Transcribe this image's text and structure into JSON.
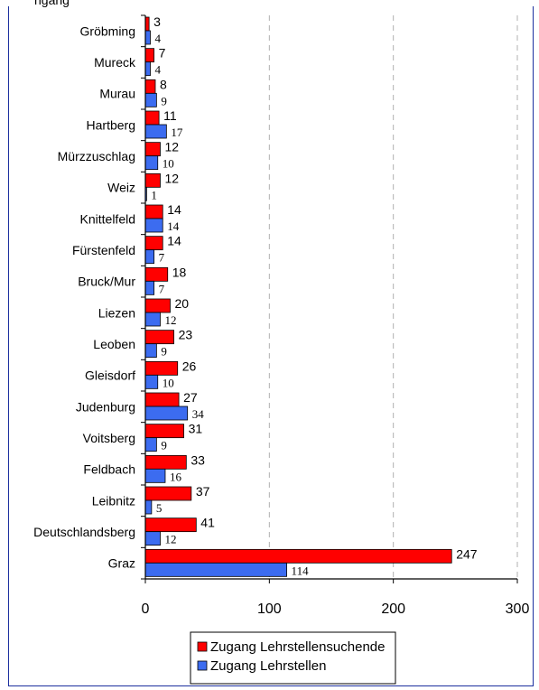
{
  "top_fragment": "ngang",
  "colors": {
    "red": "#ff0000",
    "blue": "#3c6cf0",
    "frame": "#1c2f9e"
  },
  "chart_data": {
    "type": "bar",
    "orientation": "horizontal",
    "categories": [
      "Gröbming",
      "Mureck",
      "Murau",
      "Hartberg",
      "Mürzzuschlag",
      "Weiz",
      "Knittelfeld",
      "Fürstenfeld",
      "Bruck/Mur",
      "Liezen",
      "Leoben",
      "Gleisdorf",
      "Judenburg",
      "Voitsberg",
      "Feldbach",
      "Leibnitz",
      "Deutschlandsberg",
      "Graz"
    ],
    "series": [
      {
        "name": "Zugang Lehrstellensuchende",
        "color": "#ff0000",
        "values": [
          3,
          7,
          8,
          11,
          12,
          12,
          14,
          14,
          18,
          20,
          23,
          26,
          27,
          31,
          33,
          37,
          41,
          247
        ]
      },
      {
        "name": "Zugang Lehrstellen",
        "color": "#3c6cf0",
        "values": [
          4,
          4,
          9,
          17,
          10,
          1,
          14,
          7,
          7,
          12,
          9,
          10,
          34,
          9,
          16,
          5,
          12,
          114
        ]
      }
    ],
    "xlim": [
      0,
      300
    ],
    "xticks": [
      "0",
      "100",
      "200",
      "300"
    ],
    "grid": "vertical dashed",
    "legend_position": "bottom"
  }
}
